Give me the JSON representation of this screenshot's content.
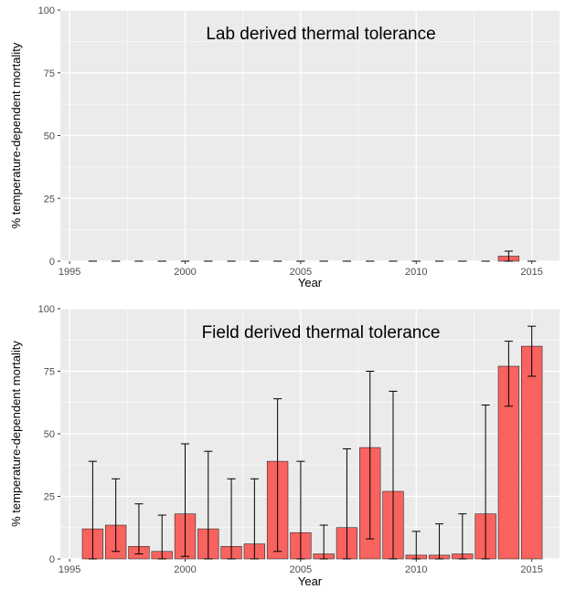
{
  "chart_data": [
    {
      "type": "bar",
      "title": "Lab derived thermal tolerance",
      "xlabel": "Year",
      "ylabel": "% temperature-dependent mortality",
      "xlim": [
        1994.6,
        2016.2
      ],
      "ylim": [
        0,
        100
      ],
      "x_ticks": [
        1995,
        2000,
        2005,
        2010,
        2015
      ],
      "y_ticks": [
        0,
        25,
        50,
        75,
        100
      ],
      "grid": true,
      "x": [
        1996,
        1997,
        1998,
        1999,
        2000,
        2001,
        2002,
        2003,
        2004,
        2005,
        2006,
        2007,
        2008,
        2009,
        2010,
        2011,
        2012,
        2013,
        2014,
        2015
      ],
      "values": [
        0,
        0,
        0,
        0,
        0,
        0,
        0,
        0,
        0,
        0,
        0,
        0,
        0,
        0,
        0,
        0,
        0,
        0,
        2,
        0
      ],
      "error_low": [
        0,
        0,
        0,
        0,
        0,
        0,
        0,
        0,
        0,
        0,
        0,
        0,
        0,
        0,
        0,
        0,
        0,
        0,
        0,
        0
      ],
      "error_high": [
        0,
        0,
        0,
        0,
        0,
        0,
        0,
        0,
        0,
        0,
        0,
        0,
        0,
        0,
        0,
        0,
        0,
        0,
        4,
        0
      ]
    },
    {
      "type": "bar",
      "title": "Field derived thermal tolerance",
      "xlabel": "Year",
      "ylabel": "% temperature-dependent mortality",
      "xlim": [
        1994.6,
        2016.2
      ],
      "ylim": [
        0,
        100
      ],
      "x_ticks": [
        1995,
        2000,
        2005,
        2010,
        2015
      ],
      "y_ticks": [
        0,
        25,
        50,
        75,
        100
      ],
      "grid": true,
      "x": [
        1996,
        1997,
        1998,
        1999,
        2000,
        2001,
        2002,
        2003,
        2004,
        2005,
        2006,
        2007,
        2008,
        2009,
        2010,
        2011,
        2012,
        2013,
        2014,
        2015
      ],
      "values": [
        12,
        13.5,
        5,
        3,
        18,
        12,
        5,
        6,
        39,
        10.5,
        2,
        12.5,
        44.5,
        27,
        1.5,
        1.5,
        2,
        18,
        77,
        85
      ],
      "error_low": [
        0,
        3,
        2,
        0,
        1,
        0,
        0,
        0,
        3,
        0,
        0,
        0,
        8,
        0,
        0,
        0,
        0,
        0,
        61,
        73
      ],
      "error_high": [
        39,
        32,
        22,
        17.5,
        46,
        43,
        32,
        32,
        64,
        39,
        13.5,
        44,
        75,
        67,
        11,
        14,
        18,
        61.5,
        87,
        93
      ]
    }
  ],
  "colors": {
    "bar_fill": "#f8635f",
    "bar_stroke": "#2b2b2b",
    "panel_background": "#ebebeb",
    "grid": "#ffffff",
    "error_bar": "#000000"
  }
}
